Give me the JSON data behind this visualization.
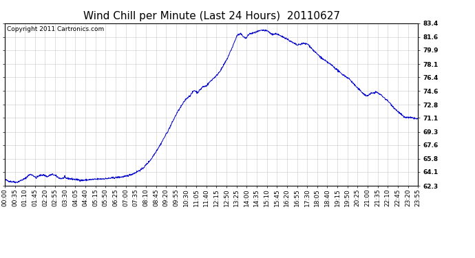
{
  "title": "Wind Chill per Minute (Last 24 Hours)  20110627",
  "copyright_text": "Copyright 2011 Cartronics.com",
  "line_color": "#0000CC",
  "background_color": "#ffffff",
  "plot_background": "#ffffff",
  "grid_color": "#c8c8c8",
  "yticks": [
    62.3,
    64.1,
    65.8,
    67.6,
    69.3,
    71.1,
    72.8,
    74.6,
    76.4,
    78.1,
    79.9,
    81.6,
    83.4
  ],
  "ymin": 62.3,
  "ymax": 83.4,
  "num_points": 1440,
  "x_tick_labels": [
    "00:00",
    "00:35",
    "01:10",
    "01:45",
    "02:20",
    "02:55",
    "03:30",
    "04:05",
    "04:40",
    "05:15",
    "05:50",
    "06:25",
    "07:00",
    "07:35",
    "08:10",
    "08:45",
    "09:20",
    "09:55",
    "10:30",
    "11:05",
    "11:40",
    "12:15",
    "12:50",
    "13:25",
    "14:00",
    "14:35",
    "15:10",
    "15:45",
    "16:20",
    "16:55",
    "17:30",
    "18:05",
    "18:40",
    "19:15",
    "19:50",
    "20:25",
    "21:00",
    "21:35",
    "22:10",
    "22:45",
    "23:20",
    "23:55"
  ],
  "title_fontsize": 11,
  "tick_fontsize": 6.5,
  "copyright_fontsize": 6.5,
  "figsize": [
    6.9,
    3.75
  ],
  "dpi": 100
}
